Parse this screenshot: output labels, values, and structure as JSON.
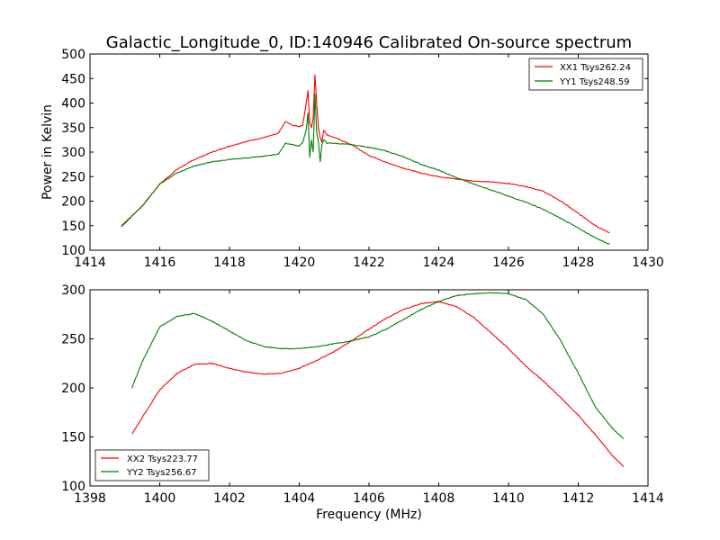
{
  "chart_data": [
    {
      "type": "line",
      "title": "Galactic_Longitude_0, ID:140946 Calibrated On-source spectrum",
      "xlabel": "",
      "ylabel": "Power in Kelvin",
      "xlim": [
        1414,
        1430
      ],
      "ylim": [
        100,
        500
      ],
      "xticks": [
        1414,
        1416,
        1418,
        1420,
        1422,
        1424,
        1426,
        1428,
        1430
      ],
      "yticks": [
        100,
        150,
        200,
        250,
        300,
        350,
        400,
        450,
        500
      ],
      "legend_position": "top-right",
      "series": [
        {
          "name": "XX1 Tsys262.24",
          "color": "#ff0000",
          "x": [
            1414.9,
            1415.5,
            1416.0,
            1416.5,
            1417.0,
            1417.5,
            1418.0,
            1418.5,
            1419.0,
            1419.4,
            1419.6,
            1419.8,
            1420.0,
            1420.1,
            1420.2,
            1420.25,
            1420.3,
            1420.35,
            1420.4,
            1420.45,
            1420.5,
            1420.55,
            1420.6,
            1420.65,
            1420.7,
            1420.8,
            1421.0,
            1421.5,
            1422.0,
            1422.5,
            1423.0,
            1423.5,
            1424.0,
            1424.5,
            1425.0,
            1425.5,
            1426.0,
            1426.5,
            1427.0,
            1427.5,
            1428.0,
            1428.5,
            1428.9
          ],
          "values": [
            150,
            190,
            235,
            265,
            285,
            300,
            312,
            322,
            330,
            338,
            362,
            355,
            352,
            355,
            400,
            425,
            360,
            350,
            370,
            458,
            400,
            350,
            330,
            320,
            345,
            335,
            330,
            315,
            293,
            279,
            267,
            257,
            250,
            245,
            241,
            239,
            236,
            230,
            220,
            200,
            175,
            150,
            135
          ]
        },
        {
          "name": "YY1 Tsys248.59",
          "color": "#007f00",
          "x": [
            1414.9,
            1415.5,
            1416.0,
            1416.5,
            1417.0,
            1417.5,
            1418.0,
            1418.5,
            1419.0,
            1419.4,
            1419.6,
            1419.8,
            1420.0,
            1420.1,
            1420.2,
            1420.25,
            1420.3,
            1420.35,
            1420.4,
            1420.45,
            1420.5,
            1420.55,
            1420.6,
            1420.65,
            1420.7,
            1420.8,
            1421.0,
            1421.5,
            1422.0,
            1422.5,
            1423.0,
            1423.5,
            1424.0,
            1424.5,
            1425.0,
            1425.5,
            1426.0,
            1426.5,
            1427.0,
            1427.5,
            1428.0,
            1428.5,
            1428.9
          ],
          "values": [
            148,
            190,
            235,
            258,
            272,
            280,
            285,
            288,
            292,
            296,
            318,
            315,
            312,
            320,
            345,
            380,
            290,
            325,
            300,
            418,
            340,
            320,
            280,
            315,
            325,
            318,
            318,
            315,
            310,
            302,
            290,
            275,
            263,
            248,
            235,
            223,
            210,
            198,
            183,
            165,
            145,
            125,
            112
          ]
        }
      ]
    },
    {
      "type": "line",
      "title": "",
      "xlabel": "Frequency (MHz)",
      "ylabel": "",
      "xlim": [
        1398,
        1414
      ],
      "ylim": [
        100,
        300
      ],
      "xticks": [
        1398,
        1400,
        1402,
        1404,
        1406,
        1408,
        1410,
        1412,
        1414
      ],
      "yticks": [
        100,
        150,
        200,
        250,
        300
      ],
      "legend_position": "bottom-left",
      "series": [
        {
          "name": "XX2 Tsys223.77",
          "color": "#ff0000",
          "x": [
            1399.2,
            1399.5,
            1400.0,
            1400.5,
            1401.0,
            1401.5,
            1402.0,
            1402.5,
            1403.0,
            1403.5,
            1404.0,
            1404.5,
            1405.0,
            1405.5,
            1406.0,
            1406.5,
            1407.0,
            1407.5,
            1408.0,
            1408.5,
            1409.0,
            1409.5,
            1410.0,
            1410.5,
            1411.0,
            1411.5,
            1412.0,
            1412.5,
            1413.0,
            1413.3
          ],
          "values": [
            153,
            170,
            198,
            215,
            224,
            225,
            220,
            216,
            214,
            215,
            220,
            228,
            237,
            248,
            260,
            271,
            280,
            286,
            288,
            283,
            272,
            256,
            240,
            222,
            207,
            190,
            172,
            152,
            130,
            120
          ]
        },
        {
          "name": "YY2 Tsys256.67",
          "color": "#007f00",
          "x": [
            1399.2,
            1399.5,
            1400.0,
            1400.5,
            1401.0,
            1401.5,
            1402.0,
            1402.5,
            1403.0,
            1403.5,
            1404.0,
            1404.5,
            1405.0,
            1405.5,
            1406.0,
            1406.5,
            1407.0,
            1407.5,
            1408.0,
            1408.5,
            1409.0,
            1409.5,
            1410.0,
            1410.5,
            1411.0,
            1411.5,
            1412.0,
            1412.5,
            1413.0,
            1413.3
          ],
          "values": [
            200,
            227,
            262,
            273,
            276,
            268,
            258,
            248,
            242,
            240,
            240,
            242,
            245,
            248,
            252,
            260,
            270,
            280,
            288,
            294,
            296,
            297,
            296,
            290,
            275,
            248,
            215,
            180,
            158,
            148
          ]
        }
      ]
    }
  ]
}
